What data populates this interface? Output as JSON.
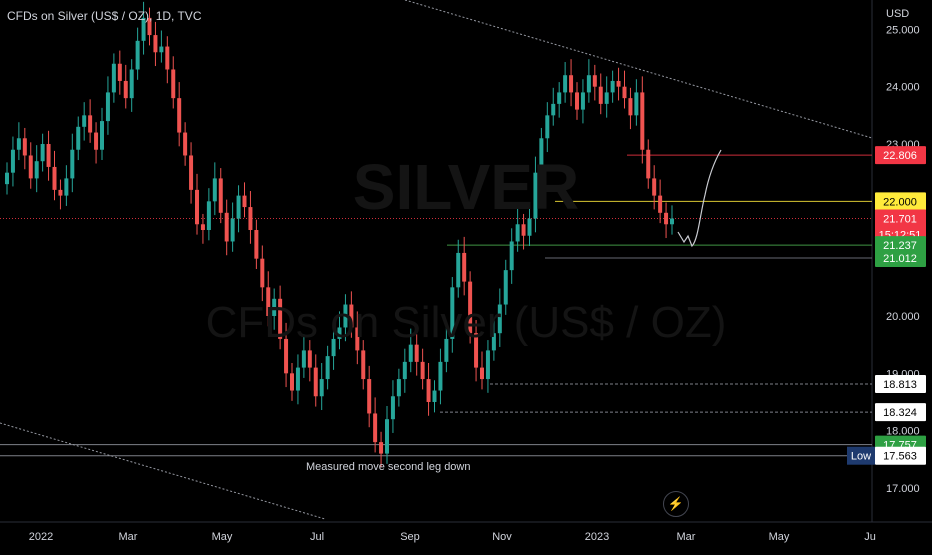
{
  "header": {
    "title": "CFDs on Silver (US$ / OZ), 1D, TVC"
  },
  "axis": {
    "currency": "USD"
  },
  "watermark": {
    "symbol": "SILVER",
    "name": "CFDs on Silver (US$ / OZ)"
  },
  "annotation": {
    "text": "Measured move second leg down"
  },
  "chart_data": {
    "type": "candlestick",
    "x_ticks": [
      "2022",
      "Mar",
      "May",
      "Jul",
      "Sep",
      "Nov",
      "2023",
      "Mar",
      "May",
      "Ju"
    ],
    "y_ticks": [
      {
        "label": "25.000",
        "value": 25.0
      },
      {
        "label": "24.000",
        "value": 24.0
      },
      {
        "label": "23.000",
        "value": 23.0
      },
      {
        "label": "20.000",
        "value": 20.0
      },
      {
        "label": "19.000",
        "value": 19.0
      },
      {
        "label": "18.000",
        "value": 18.0
      },
      {
        "label": "17.000",
        "value": 17.0
      }
    ],
    "ylim": [
      16.85,
      25.2
    ],
    "price_badges": [
      {
        "text": "22.806",
        "value": 22.806,
        "bg": "#f23645",
        "fg": "#ffffff"
      },
      {
        "text": "22.000",
        "value": 22.0,
        "bg": "#ffeb3b",
        "fg": "#000000"
      },
      {
        "text": "21.701",
        "sub": "15:12:51",
        "value": 21.701,
        "bg": "#f23645",
        "fg": "#ffffff"
      },
      {
        "text": "21.237",
        "value": 21.237,
        "bg": "#2ea043",
        "fg": "#ffffff"
      },
      {
        "text": "21.012",
        "value": 21.012,
        "bg": "#2ea043",
        "fg": "#ffffff"
      },
      {
        "text": "18.813",
        "value": 18.813,
        "bg": "#ffffff",
        "fg": "#000000"
      },
      {
        "text": "18.324",
        "value": 18.324,
        "bg": "#ffffff",
        "fg": "#000000"
      },
      {
        "text": "17.757",
        "value": 17.757,
        "bg": "#2ea043",
        "fg": "#ffffff"
      },
      {
        "text": "17.563",
        "value": 17.563,
        "bg": "#ffffff",
        "fg": "#000000",
        "label": "Low"
      }
    ],
    "horizontal_levels": [
      {
        "value": 22.806,
        "color": "#f23645",
        "style": "solid"
      },
      {
        "value": 22.0,
        "color": "#ffeb3b",
        "style": "solid"
      },
      {
        "value": 21.701,
        "color": "#f23645",
        "style": "dotted"
      },
      {
        "value": 21.237,
        "color": "#4caf50",
        "style": "solid"
      },
      {
        "value": 21.012,
        "color": "#787b86",
        "style": "solid"
      },
      {
        "value": 18.813,
        "color": "#9598a1",
        "style": "dashed"
      },
      {
        "value": 18.324,
        "color": "#9598a1",
        "style": "dashed"
      },
      {
        "value": 17.757,
        "color": "#9598a1",
        "style": "solid"
      },
      {
        "value": 17.563,
        "color": "#9598a1",
        "style": "solid"
      }
    ],
    "closes": [
      22.5,
      22.9,
      23.1,
      22.8,
      22.4,
      22.7,
      23.0,
      22.6,
      22.2,
      22.1,
      22.4,
      22.9,
      23.3,
      23.5,
      23.2,
      22.9,
      23.4,
      23.9,
      24.4,
      24.1,
      23.8,
      24.3,
      24.8,
      25.2,
      24.9,
      24.6,
      24.7,
      24.3,
      23.8,
      23.2,
      22.8,
      22.2,
      21.6,
      21.5,
      22.0,
      22.4,
      21.8,
      21.3,
      21.7,
      22.1,
      21.9,
      21.5,
      21.0,
      20.5,
      20.0,
      20.3,
      19.6,
      19.0,
      18.7,
      19.1,
      19.4,
      19.1,
      18.6,
      18.9,
      19.3,
      19.6,
      19.8,
      20.2,
      19.8,
      19.4,
      18.9,
      18.3,
      17.8,
      17.6,
      18.2,
      18.6,
      18.9,
      19.2,
      19.5,
      19.2,
      18.9,
      18.5,
      18.7,
      19.2,
      19.6,
      20.5,
      21.1,
      20.6,
      19.7,
      19.1,
      18.9,
      19.4,
      19.7,
      20.2,
      20.8,
      21.3,
      21.6,
      21.4,
      21.7,
      22.5,
      23.1,
      23.5,
      23.7,
      23.9,
      24.2,
      23.9,
      23.6,
      23.9,
      24.2,
      24.0,
      23.7,
      23.9,
      24.1,
      24.0,
      23.8,
      23.5,
      23.9,
      22.9,
      22.4,
      22.1,
      21.8,
      21.6,
      21.7
    ]
  }
}
